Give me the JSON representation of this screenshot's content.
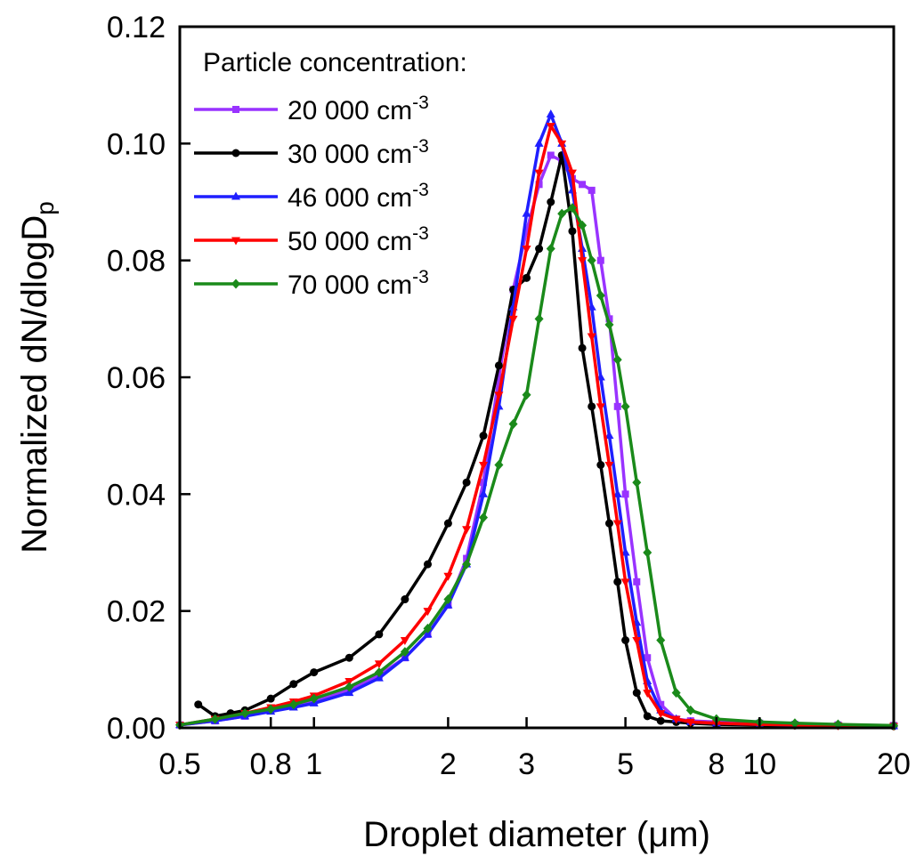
{
  "chart_data": {
    "type": "line",
    "xlabel": "Droplet diameter (μm)",
    "ylabel": {
      "main": "Normalized dN/dlogD",
      "sub": "p"
    },
    "x_scale": "log",
    "xlim": [
      0.5,
      20
    ],
    "ylim": [
      0,
      0.12
    ],
    "x_ticks": [
      {
        "value": 0.5,
        "label": "0.5"
      },
      {
        "value": 0.8,
        "label": "0.8"
      },
      {
        "value": 1,
        "label": "1"
      },
      {
        "value": 2,
        "label": "2"
      },
      {
        "value": 3,
        "label": "3"
      },
      {
        "value": 5,
        "label": "5"
      },
      {
        "value": 8,
        "label": "8"
      },
      {
        "value": 10,
        "label": "10"
      },
      {
        "value": 20,
        "label": "20"
      }
    ],
    "y_ticks": [
      {
        "value": 0.0,
        "label": "0.00"
      },
      {
        "value": 0.02,
        "label": "0.02"
      },
      {
        "value": 0.04,
        "label": "0.04"
      },
      {
        "value": 0.06,
        "label": "0.06"
      },
      {
        "value": 0.08,
        "label": "0.08"
      },
      {
        "value": 0.1,
        "label": "0.10"
      },
      {
        "value": 0.12,
        "label": "0.12"
      }
    ],
    "legend": {
      "title": "Particle concentration:",
      "position": "top-left"
    },
    "grid": false,
    "series": [
      {
        "name": "20 000 cm",
        "name_sup": "-3",
        "color": "#9933ff",
        "marker": "square",
        "x": [
          0.5,
          0.6,
          0.7,
          0.8,
          0.9,
          1.0,
          1.2,
          1.4,
          1.6,
          1.8,
          2.0,
          2.2,
          2.4,
          2.6,
          2.8,
          3.0,
          3.2,
          3.4,
          3.6,
          3.8,
          4.0,
          4.2,
          4.4,
          4.6,
          4.8,
          5.0,
          5.3,
          5.6,
          6.0,
          6.5,
          7.0,
          8.0,
          10.0,
          12.0,
          15.0,
          20.0
        ],
        "y": [
          0.0005,
          0.0012,
          0.002,
          0.003,
          0.0038,
          0.0045,
          0.0065,
          0.009,
          0.012,
          0.016,
          0.021,
          0.029,
          0.042,
          0.06,
          0.075,
          0.085,
          0.093,
          0.098,
          0.097,
          0.094,
          0.093,
          0.092,
          0.08,
          0.07,
          0.055,
          0.04,
          0.025,
          0.012,
          0.004,
          0.0015,
          0.0012,
          0.001,
          0.0008,
          0.0006,
          0.0005,
          0.0004
        ]
      },
      {
        "name": "30 000 cm",
        "name_sup": "-3",
        "color": "#000000",
        "marker": "circle",
        "x": [
          0.55,
          0.6,
          0.65,
          0.7,
          0.8,
          0.9,
          1.0,
          1.2,
          1.4,
          1.6,
          1.8,
          2.0,
          2.2,
          2.4,
          2.6,
          2.8,
          3.0,
          3.2,
          3.4,
          3.6,
          3.8,
          4.0,
          4.2,
          4.4,
          4.6,
          4.8,
          5.0,
          5.3,
          5.6,
          6.0,
          6.5,
          7.0,
          8.0,
          10.0,
          12.0,
          15.0,
          20.0
        ],
        "y": [
          0.004,
          0.002,
          0.0025,
          0.003,
          0.005,
          0.0075,
          0.0095,
          0.012,
          0.016,
          0.022,
          0.028,
          0.035,
          0.042,
          0.05,
          0.062,
          0.075,
          0.077,
          0.082,
          0.09,
          0.098,
          0.085,
          0.065,
          0.055,
          0.045,
          0.035,
          0.025,
          0.015,
          0.006,
          0.002,
          0.0012,
          0.001,
          0.0008,
          0.0006,
          0.0005,
          0.0004,
          0.0004,
          0.0003
        ]
      },
      {
        "name": "46 000 cm",
        "name_sup": "-3",
        "color": "#1f1fff",
        "marker": "triangle-up",
        "x": [
          0.5,
          0.6,
          0.7,
          0.8,
          0.9,
          1.0,
          1.2,
          1.4,
          1.6,
          1.8,
          2.0,
          2.2,
          2.4,
          2.6,
          2.8,
          3.0,
          3.2,
          3.4,
          3.6,
          3.8,
          4.0,
          4.2,
          4.4,
          4.6,
          4.8,
          5.0,
          5.3,
          5.6,
          6.0,
          6.5,
          7.0,
          8.0,
          10.0,
          12.0,
          15.0,
          20.0
        ],
        "y": [
          0.0005,
          0.0012,
          0.002,
          0.0028,
          0.0035,
          0.0042,
          0.006,
          0.0085,
          0.012,
          0.016,
          0.021,
          0.028,
          0.04,
          0.055,
          0.072,
          0.088,
          0.1,
          0.105,
          0.1,
          0.092,
          0.082,
          0.072,
          0.06,
          0.05,
          0.04,
          0.03,
          0.018,
          0.008,
          0.003,
          0.0015,
          0.001,
          0.0008,
          0.0006,
          0.0005,
          0.0004,
          0.0003
        ]
      },
      {
        "name": "50 000 cm",
        "name_sup": "-3",
        "color": "#ff0000",
        "marker": "triangle-down",
        "x": [
          0.5,
          0.6,
          0.7,
          0.8,
          0.9,
          1.0,
          1.2,
          1.4,
          1.6,
          1.8,
          2.0,
          2.2,
          2.4,
          2.6,
          2.8,
          3.0,
          3.2,
          3.4,
          3.6,
          3.8,
          4.0,
          4.2,
          4.4,
          4.6,
          4.8,
          5.0,
          5.3,
          5.6,
          6.0,
          6.5,
          7.0,
          8.0,
          10.0,
          12.0,
          15.0,
          20.0
        ],
        "y": [
          0.0005,
          0.0015,
          0.0025,
          0.0035,
          0.0045,
          0.0055,
          0.008,
          0.011,
          0.015,
          0.02,
          0.026,
          0.034,
          0.045,
          0.057,
          0.07,
          0.082,
          0.095,
          0.103,
          0.1,
          0.095,
          0.08,
          0.067,
          0.055,
          0.045,
          0.035,
          0.025,
          0.015,
          0.006,
          0.0025,
          0.0015,
          0.001,
          0.0008,
          0.0006,
          0.0005,
          0.0004,
          0.0003
        ]
      },
      {
        "name": "70 000 cm",
        "name_sup": "-3",
        "color": "#1a8a1a",
        "marker": "diamond",
        "x": [
          0.5,
          0.6,
          0.7,
          0.8,
          0.9,
          1.0,
          1.2,
          1.4,
          1.6,
          1.8,
          2.0,
          2.2,
          2.4,
          2.6,
          2.8,
          3.0,
          3.2,
          3.4,
          3.6,
          3.8,
          4.0,
          4.2,
          4.4,
          4.6,
          4.8,
          5.0,
          5.3,
          5.6,
          6.0,
          6.5,
          7.0,
          8.0,
          10.0,
          12.0,
          15.0,
          20.0
        ],
        "y": [
          0.0005,
          0.0015,
          0.0025,
          0.0032,
          0.004,
          0.005,
          0.007,
          0.0095,
          0.013,
          0.017,
          0.022,
          0.028,
          0.036,
          0.045,
          0.052,
          0.057,
          0.07,
          0.082,
          0.088,
          0.089,
          0.086,
          0.08,
          0.074,
          0.069,
          0.063,
          0.055,
          0.042,
          0.03,
          0.015,
          0.006,
          0.003,
          0.0015,
          0.001,
          0.0008,
          0.0006,
          0.0004
        ]
      }
    ]
  }
}
